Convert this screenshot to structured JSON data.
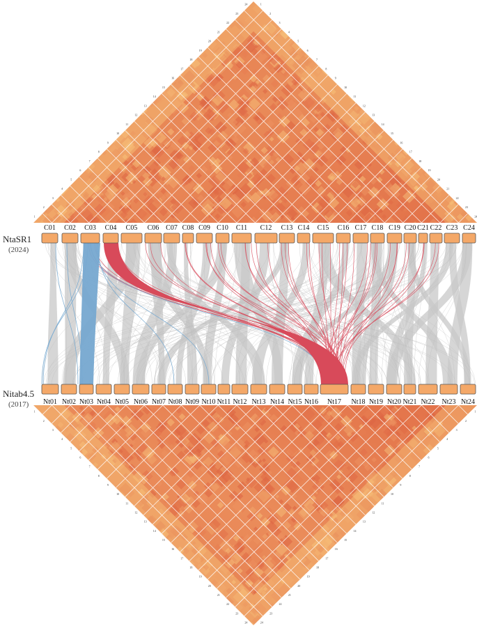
{
  "genomes": {
    "top": {
      "name": "NtaSR1",
      "year": "(2024)"
    },
    "bottom": {
      "name": "Nitab4.5",
      "year": "(2017)"
    }
  },
  "top_chromosomes": [
    "C01",
    "C02",
    "C03",
    "C04",
    "C05",
    "C06",
    "C07",
    "C08",
    "C09",
    "C10",
    "C11",
    "C12",
    "C13",
    "C14",
    "C15",
    "C16",
    "C17",
    "C18",
    "C19",
    "C20",
    "C21",
    "C22",
    "C23",
    "C24"
  ],
  "bottom_chromosomes": [
    "Nt01",
    "Nt02",
    "Nt03",
    "Nt04",
    "Nt05",
    "Nt06",
    "Nt07",
    "Nt08",
    "Nt09",
    "Nt10",
    "Nt11",
    "Nt12",
    "Nt13",
    "Nt14",
    "Nt15",
    "Nt16",
    "Nt17",
    "Nt18",
    "Nt19",
    "Nt20",
    "Nt21",
    "Nt22",
    "Nt23",
    "Nt24"
  ],
  "top_ticks": [
    "1",
    "2",
    "3",
    "4",
    "5",
    "6",
    "7",
    "8",
    "9",
    "10",
    "11",
    "12",
    "13",
    "14",
    "15",
    "16",
    "17",
    "18",
    "19",
    "20",
    "21",
    "22",
    "23",
    "24"
  ],
  "bottom_ticks": [
    "1",
    "2",
    "3",
    "4",
    "5",
    "6",
    "7",
    "8",
    "9",
    "10",
    "11",
    "12",
    "13",
    "14",
    "15",
    "16",
    "17",
    "18",
    "19",
    "20",
    "21",
    "22",
    "23",
    "24"
  ],
  "colors": {
    "chromosome": "#f4a868",
    "chromosome_border": "#555555",
    "syntenic_link": "#c8c8c8",
    "highlight_red": "#d84a5a",
    "highlight_blue": "#76a8d0",
    "heatmap_low": "#e0714a",
    "heatmap_high": "#f8c77c",
    "grid_line": "#ffffff"
  }
}
